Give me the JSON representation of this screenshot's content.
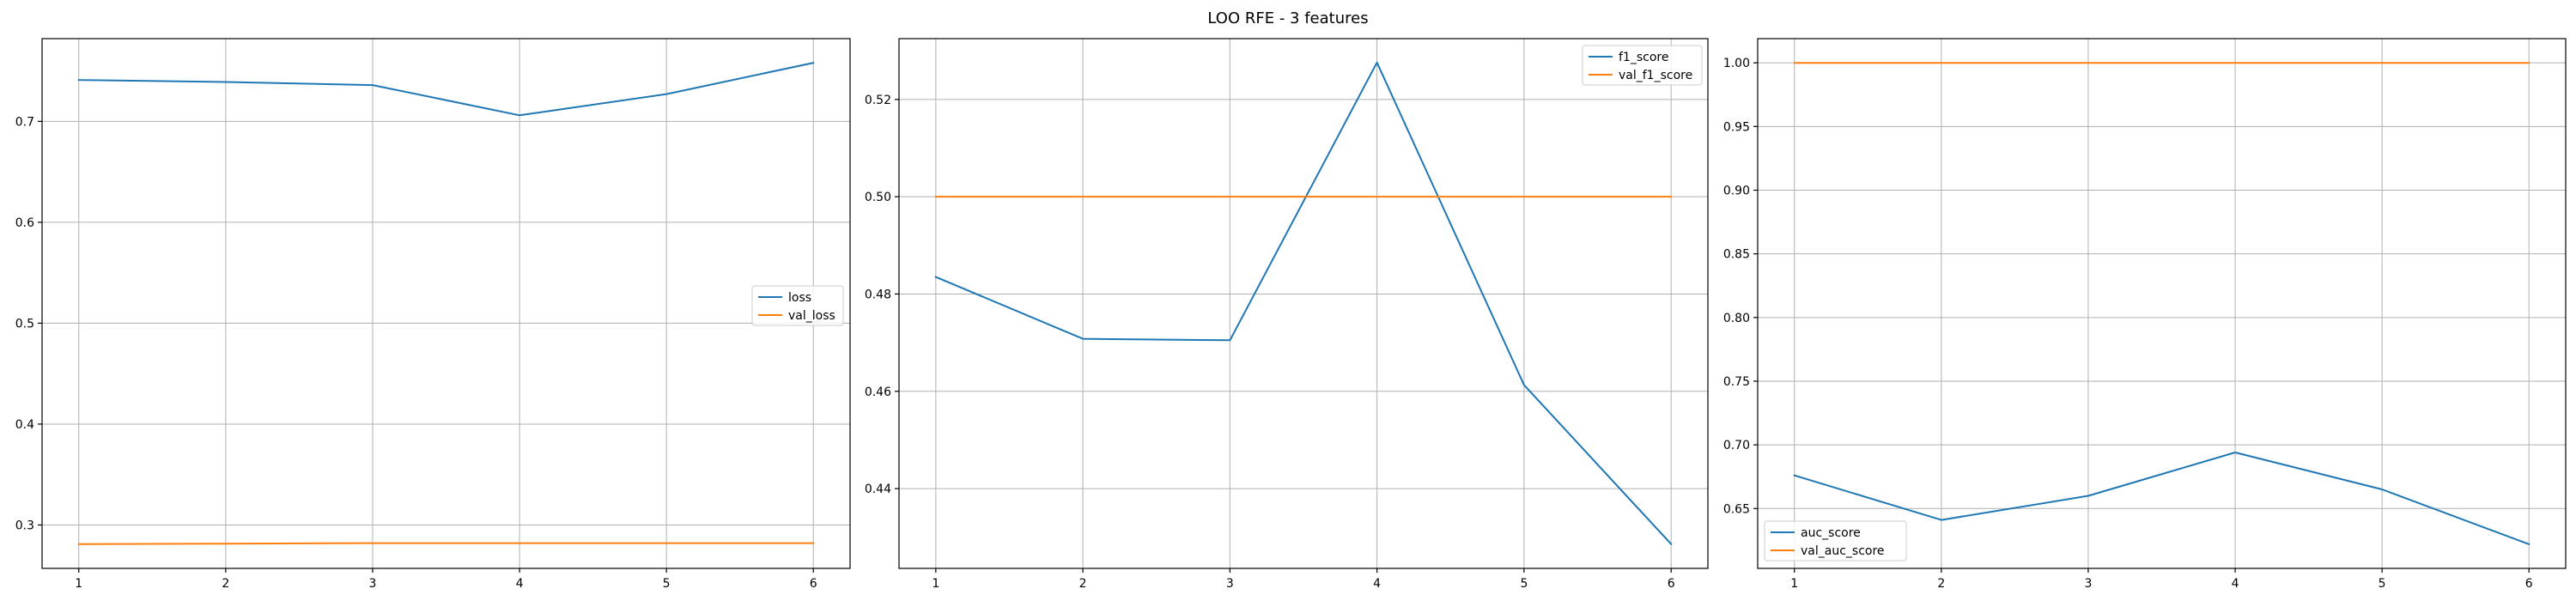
{
  "figure": {
    "suptitle": "LOO RFE - 3 features"
  },
  "colors": {
    "series_1": "#1f77b4",
    "series_2": "#ff7f0e",
    "grid": "#b0b0b0"
  },
  "chart_data": [
    {
      "type": "line",
      "x": [
        1,
        2,
        3,
        4,
        5,
        6
      ],
      "xticks": [
        "1",
        "2",
        "3",
        "4",
        "5",
        "6"
      ],
      "yticks": [
        0.3,
        0.4,
        0.5,
        0.6,
        0.7
      ],
      "ytick_labels": [
        "0.3",
        "0.4",
        "0.5",
        "0.6",
        "0.7"
      ],
      "xlim": [
        0.75,
        6.25
      ],
      "ylim": [
        0.257,
        0.782
      ],
      "grid": true,
      "legend_position": "center-right",
      "series": [
        {
          "name": "loss",
          "color": "#1f77b4",
          "values": [
            0.741,
            0.739,
            0.736,
            0.706,
            0.727,
            0.758
          ]
        },
        {
          "name": "val_loss",
          "color": "#ff7f0e",
          "values": [
            0.281,
            0.2815,
            0.282,
            0.282,
            0.282,
            0.282
          ]
        }
      ]
    },
    {
      "type": "line",
      "x": [
        1,
        2,
        3,
        4,
        5,
        6
      ],
      "xticks": [
        "1",
        "2",
        "3",
        "4",
        "5",
        "6"
      ],
      "yticks": [
        0.44,
        0.46,
        0.48,
        0.5,
        0.52
      ],
      "ytick_labels": [
        "0.44",
        "0.46",
        "0.48",
        "0.50",
        "0.52"
      ],
      "xlim": [
        0.75,
        6.25
      ],
      "ylim": [
        0.4236,
        0.5325
      ],
      "grid": true,
      "legend_position": "upper-right",
      "series": [
        {
          "name": "f1_score",
          "color": "#1f77b4",
          "values": [
            0.4835,
            0.4708,
            0.4705,
            0.5276,
            0.4613,
            0.4286
          ]
        },
        {
          "name": "val_f1_score",
          "color": "#ff7f0e",
          "values": [
            0.5,
            0.5,
            0.5,
            0.5,
            0.5,
            0.5
          ]
        }
      ]
    },
    {
      "type": "line",
      "x": [
        1,
        2,
        3,
        4,
        5,
        6
      ],
      "xticks": [
        "1",
        "2",
        "3",
        "4",
        "5",
        "6"
      ],
      "yticks": [
        0.65,
        0.7,
        0.75,
        0.8,
        0.85,
        0.9,
        0.95,
        1.0
      ],
      "ytick_labels": [
        "0.65",
        "0.70",
        "0.75",
        "0.80",
        "0.85",
        "0.90",
        "0.95",
        "1.00"
      ],
      "xlim": [
        0.75,
        6.25
      ],
      "ylim": [
        0.603,
        1.019
      ],
      "grid": true,
      "legend_position": "lower-left",
      "series": [
        {
          "name": "auc_score",
          "color": "#1f77b4",
          "values": [
            0.676,
            0.641,
            0.66,
            0.694,
            0.665,
            0.622
          ]
        },
        {
          "name": "val_auc_score",
          "color": "#ff7f0e",
          "values": [
            1.0,
            1.0,
            1.0,
            1.0,
            1.0,
            1.0
          ]
        }
      ]
    }
  ]
}
